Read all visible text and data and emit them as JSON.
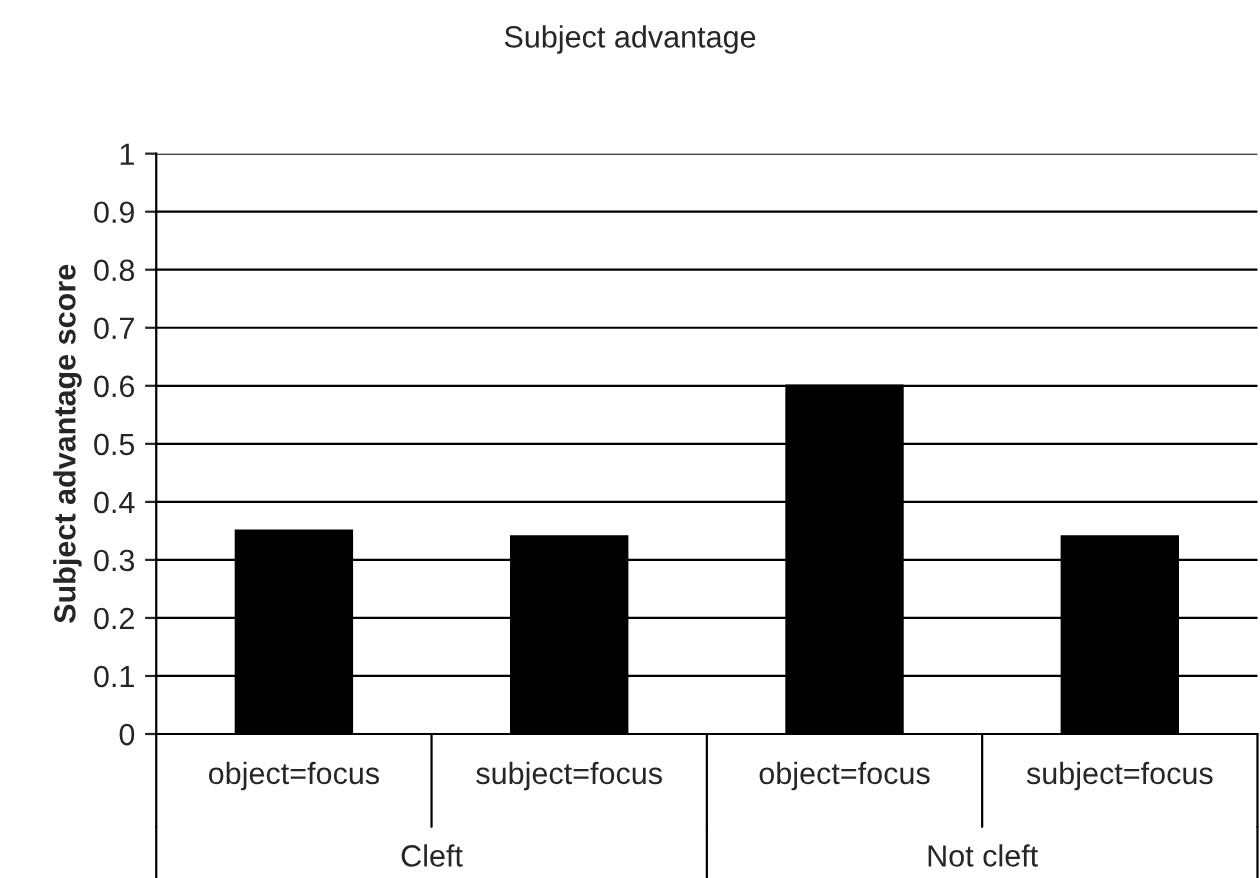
{
  "chart_data": {
    "type": "bar",
    "title": "Subject advantage",
    "ylabel": "Subject advantage score",
    "categories": [
      "object=focus",
      "subject=focus",
      "object=focus",
      "subject=focus"
    ],
    "values": [
      0.35,
      0.34,
      0.6,
      0.34
    ],
    "color": "#000000",
    "ylim": [
      0,
      1
    ],
    "yticks": [
      0,
      0.1,
      0.2,
      0.3,
      0.4,
      0.5,
      0.6,
      0.7,
      0.8,
      0.9,
      1
    ],
    "grid": "y",
    "annotations": [
      "Cleft",
      "Not cleft"
    ]
  }
}
